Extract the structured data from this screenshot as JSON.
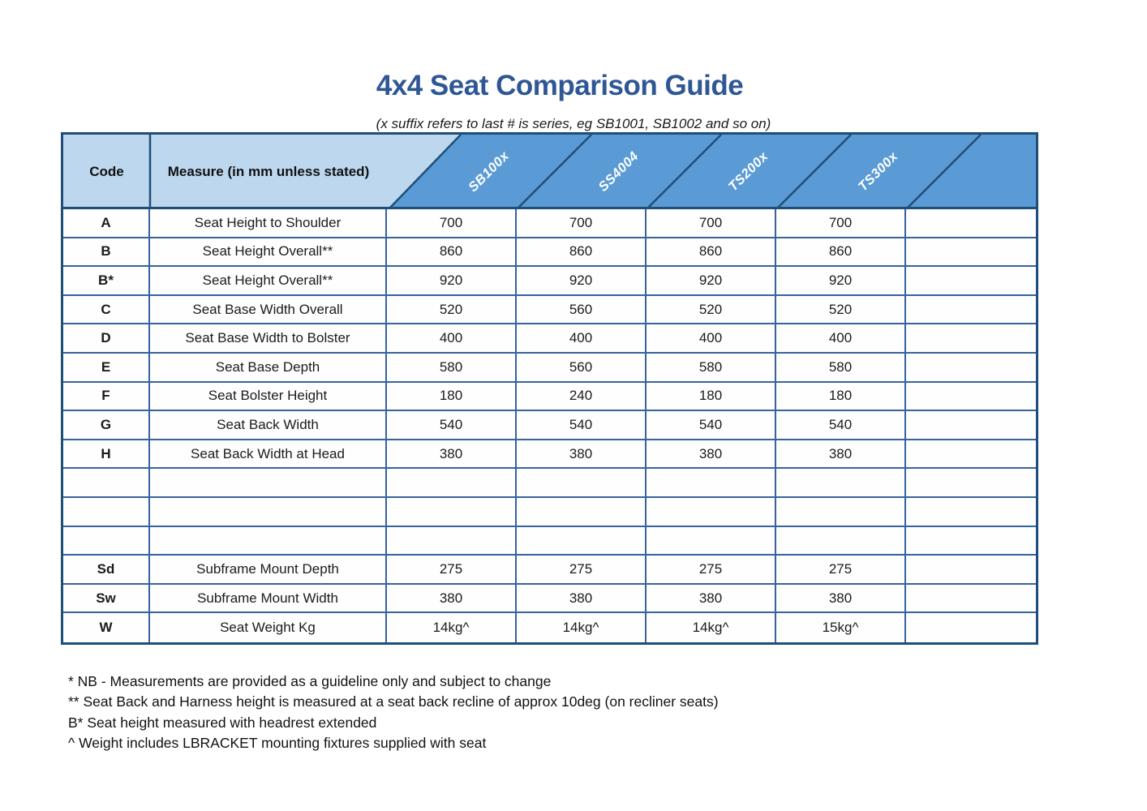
{
  "title": "4x4 Seat Comparison Guide",
  "subtitle": "(x suffix refers to last # is series, eg SB1001, SB1002 and so on)",
  "colors": {
    "title_blue": "#2F5795",
    "header_light_blue": "#BDD7EE",
    "header_medium_blue": "#5B9BD5",
    "line_navy": "#1F4E79",
    "grid_border_blue": "#35639E",
    "text_black": "#1b1b1b"
  },
  "table": {
    "code_header": "Code",
    "measure_header": "Measure (in mm unless stated)",
    "model_columns": [
      "SB100x",
      "SS4004",
      "TS200x",
      "TS300x",
      ""
    ],
    "rows": [
      {
        "code": "A",
        "measure": "Seat Height to Shoulder",
        "values": [
          "700",
          "700",
          "700",
          "700",
          ""
        ]
      },
      {
        "code": "B",
        "measure": "Seat Height Overall**",
        "values": [
          "860",
          "860",
          "860",
          "860",
          ""
        ]
      },
      {
        "code": "B*",
        "measure": "Seat Height Overall**",
        "values": [
          "920",
          "920",
          "920",
          "920",
          ""
        ]
      },
      {
        "code": "C",
        "measure": "Seat Base Width Overall",
        "values": [
          "520",
          "560",
          "520",
          "520",
          ""
        ]
      },
      {
        "code": "D",
        "measure": "Seat Base Width to Bolster",
        "values": [
          "400",
          "400",
          "400",
          "400",
          ""
        ]
      },
      {
        "code": "E",
        "measure": "Seat Base Depth",
        "values": [
          "580",
          "560",
          "580",
          "580",
          ""
        ]
      },
      {
        "code": "F",
        "measure": "Seat Bolster Height",
        "values": [
          "180",
          "240",
          "180",
          "180",
          ""
        ]
      },
      {
        "code": "G",
        "measure": "Seat Back Width",
        "values": [
          "540",
          "540",
          "540",
          "540",
          ""
        ]
      },
      {
        "code": "H",
        "measure": "Seat Back Width at Head",
        "values": [
          "380",
          "380",
          "380",
          "380",
          ""
        ]
      },
      {
        "code": "",
        "measure": "",
        "values": [
          "",
          "",
          "",
          "",
          ""
        ]
      },
      {
        "code": "",
        "measure": "",
        "values": [
          "",
          "",
          "",
          "",
          ""
        ]
      },
      {
        "code": "",
        "measure": "",
        "values": [
          "",
          "",
          "",
          "",
          ""
        ]
      },
      {
        "code": "Sd",
        "measure": "Subframe Mount Depth",
        "values": [
          "275",
          "275",
          "275",
          "275",
          ""
        ]
      },
      {
        "code": "Sw",
        "measure": "Subframe Mount Width",
        "values": [
          "380",
          "380",
          "380",
          "380",
          ""
        ]
      },
      {
        "code": "W",
        "measure": "Seat Weight Kg",
        "values": [
          "14kg^",
          "14kg^",
          "14kg^",
          "15kg^",
          ""
        ]
      }
    ]
  },
  "footnotes": [
    "* NB - Measurements are provided as a guideline only and subject to change",
    "** Seat Back and Harness height is measured at a seat back recline of approx 10deg (on recliner seats)",
    "B* Seat height measured with headrest extended",
    "^ Weight includes LBRACKET mounting fixtures supplied with seat"
  ]
}
